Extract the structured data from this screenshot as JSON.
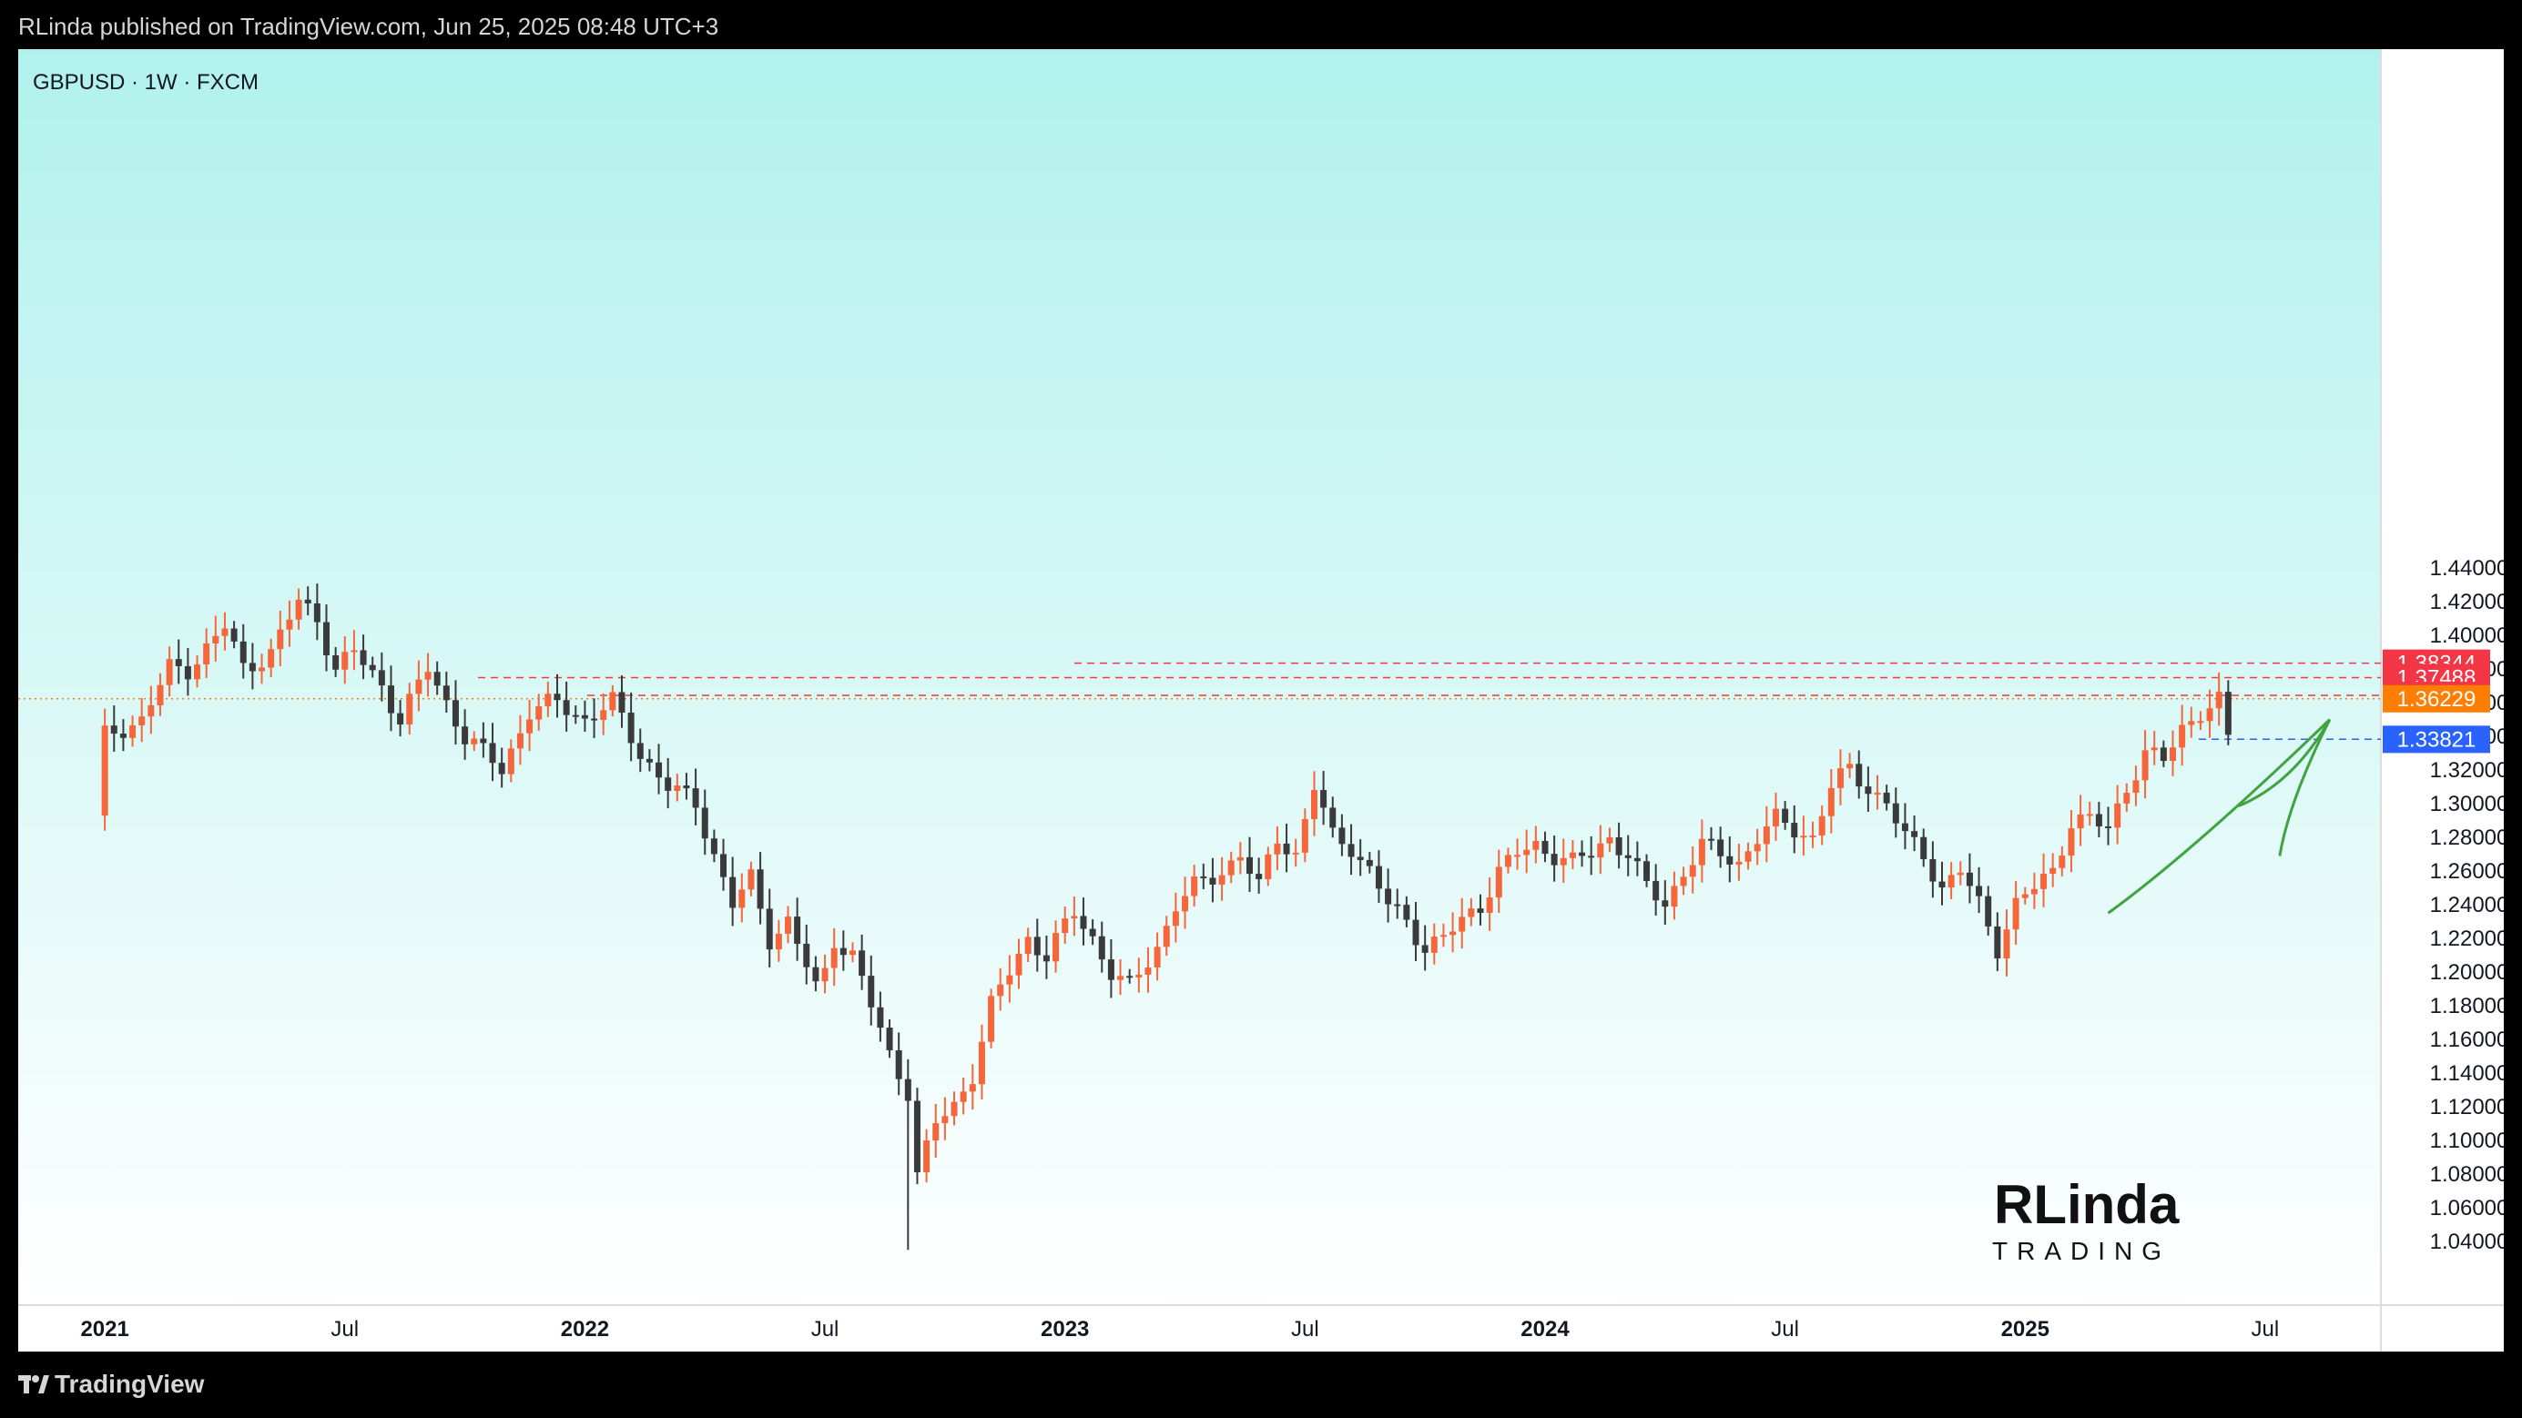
{
  "header": {
    "published_text": "RLinda published on TradingView.com, Jun 25, 2025 08:48 UTC+3"
  },
  "footer": {
    "brand": "TradingView",
    "logo_icon": "tradingview-logo-icon"
  },
  "watermark": {
    "top": "RLinda",
    "bottom": "TRADING"
  },
  "colors": {
    "up": "#f7653a",
    "down": "#3a3a3a",
    "bg_top": "#b1f1ed",
    "bg_bottom": "#ffffff",
    "trend_arrow": "#3fa33f"
  },
  "chart_data": {
    "type": "candlestick",
    "title": "GBPUSD · 1W · FXCM",
    "symbol": "GBPUSD",
    "timeframe": "1W",
    "exchange": "FXCM",
    "ylim": [
      1.03,
      1.45
    ],
    "yticks": [
      "1.44000",
      "1.42000",
      "1.40000",
      "1.38000",
      "1.36000",
      "1.34000",
      "1.32000",
      "1.30000",
      "1.28000",
      "1.26000",
      "1.24000",
      "1.22000",
      "1.20000",
      "1.18000",
      "1.16000",
      "1.14000",
      "1.12000",
      "1.10000",
      "1.08000",
      "1.06000",
      "1.04000"
    ],
    "xticks": [
      {
        "label": "2021",
        "t": 1.0,
        "bold": true
      },
      {
        "label": "Jul",
        "t": 27.0,
        "bold": false
      },
      {
        "label": "2022",
        "t": 53.0,
        "bold": true
      },
      {
        "label": "Jul",
        "t": 79.0,
        "bold": false
      },
      {
        "label": "2023",
        "t": 105.0,
        "bold": true
      },
      {
        "label": "Jul",
        "t": 131.0,
        "bold": false
      },
      {
        "label": "2024",
        "t": 157.0,
        "bold": true
      },
      {
        "label": "Jul",
        "t": 183.0,
        "bold": false
      },
      {
        "label": "2025",
        "t": 209.0,
        "bold": true
      },
      {
        "label": "Jul",
        "t": 235.0,
        "bold": false
      }
    ],
    "price_levels": [
      {
        "value": 1.38344,
        "label": "1.38344",
        "color": "#f23645",
        "style": "dashed"
      },
      {
        "value": 1.37488,
        "label": "1.37488",
        "color": "#f23645",
        "style": "dashed"
      },
      {
        "value": 1.3643,
        "label": "1.36430",
        "color": "#f23645",
        "style": "dashed"
      },
      {
        "value": 1.36229,
        "label": "1.36229",
        "color": "#ff7d00",
        "style": "dotted"
      },
      {
        "value": 1.33821,
        "label": "1.33821",
        "color": "#2962ff",
        "style": "dashed"
      }
    ],
    "anchors": [
      [
        0,
        1.29
      ],
      [
        1,
        1.34
      ],
      [
        5,
        1.35
      ],
      [
        8,
        1.38
      ],
      [
        10,
        1.38
      ],
      [
        14,
        1.405
      ],
      [
        16,
        1.38
      ],
      [
        19,
        1.39
      ],
      [
        22,
        1.42
      ],
      [
        24,
        1.41
      ],
      [
        26,
        1.38
      ],
      [
        28,
        1.39
      ],
      [
        31,
        1.37
      ],
      [
        33,
        1.35
      ],
      [
        36,
        1.38
      ],
      [
        40,
        1.34
      ],
      [
        44,
        1.32
      ],
      [
        47,
        1.355
      ],
      [
        50,
        1.36
      ],
      [
        53,
        1.35
      ],
      [
        56,
        1.36
      ],
      [
        59,
        1.33
      ],
      [
        62,
        1.31
      ],
      [
        65,
        1.3
      ],
      [
        67,
        1.27
      ],
      [
        69,
        1.24
      ],
      [
        71,
        1.255
      ],
      [
        73,
        1.22
      ],
      [
        75,
        1.23
      ],
      [
        78,
        1.19
      ],
      [
        79,
        1.2
      ],
      [
        80,
        1.22
      ],
      [
        82,
        1.21
      ],
      [
        84,
        1.18
      ],
      [
        86,
        1.15
      ],
      [
        88,
        1.13
      ],
      [
        89,
        1.08
      ],
      [
        91,
        1.11
      ],
      [
        93,
        1.12
      ],
      [
        95,
        1.14
      ],
      [
        97,
        1.18
      ],
      [
        99,
        1.2
      ],
      [
        101,
        1.22
      ],
      [
        103,
        1.21
      ],
      [
        106,
        1.235
      ],
      [
        108,
        1.22
      ],
      [
        110,
        1.2
      ],
      [
        112,
        1.19
      ],
      [
        115,
        1.215
      ],
      [
        117,
        1.24
      ],
      [
        119,
        1.25
      ],
      [
        122,
        1.26
      ],
      [
        124,
        1.27
      ],
      [
        126,
        1.25
      ],
      [
        128,
        1.28
      ],
      [
        130,
        1.27
      ],
      [
        132,
        1.31
      ],
      [
        134,
        1.28
      ],
      [
        136,
        1.275
      ],
      [
        138,
        1.26
      ],
      [
        140,
        1.24
      ],
      [
        142,
        1.23
      ],
      [
        144,
        1.215
      ],
      [
        146,
        1.22
      ],
      [
        148,
        1.23
      ],
      [
        150,
        1.24
      ],
      [
        152,
        1.26
      ],
      [
        154,
        1.27
      ],
      [
        156,
        1.275
      ],
      [
        158,
        1.27
      ],
      [
        160,
        1.265
      ],
      [
        162,
        1.27
      ],
      [
        164,
        1.28
      ],
      [
        166,
        1.27
      ],
      [
        168,
        1.25
      ],
      [
        170,
        1.24
      ],
      [
        172,
        1.26
      ],
      [
        174,
        1.275
      ],
      [
        176,
        1.27
      ],
      [
        178,
        1.265
      ],
      [
        180,
        1.28
      ],
      [
        182,
        1.29
      ],
      [
        184,
        1.285
      ],
      [
        186,
        1.28
      ],
      [
        188,
        1.31
      ],
      [
        190,
        1.32
      ],
      [
        192,
        1.31
      ],
      [
        194,
        1.3
      ],
      [
        196,
        1.28
      ],
      [
        198,
        1.27
      ],
      [
        200,
        1.25
      ],
      [
        202,
        1.26
      ],
      [
        204,
        1.24
      ],
      [
        206,
        1.215
      ],
      [
        208,
        1.24
      ],
      [
        210,
        1.25
      ],
      [
        212,
        1.26
      ],
      [
        214,
        1.29
      ],
      [
        216,
        1.29
      ],
      [
        218,
        1.285
      ],
      [
        220,
        1.31
      ],
      [
        222,
        1.33
      ],
      [
        224,
        1.325
      ],
      [
        226,
        1.345
      ],
      [
        228,
        1.355
      ],
      [
        230,
        1.36
      ],
      [
        231,
        1.338
      ]
    ],
    "highlight": {
      "low": {
        "t": 88,
        "low": 1.035
      }
    },
    "trend_arrow": {
      "from": [
        218,
        1.235
      ],
      "to": [
        242,
        1.35
      ]
    }
  }
}
